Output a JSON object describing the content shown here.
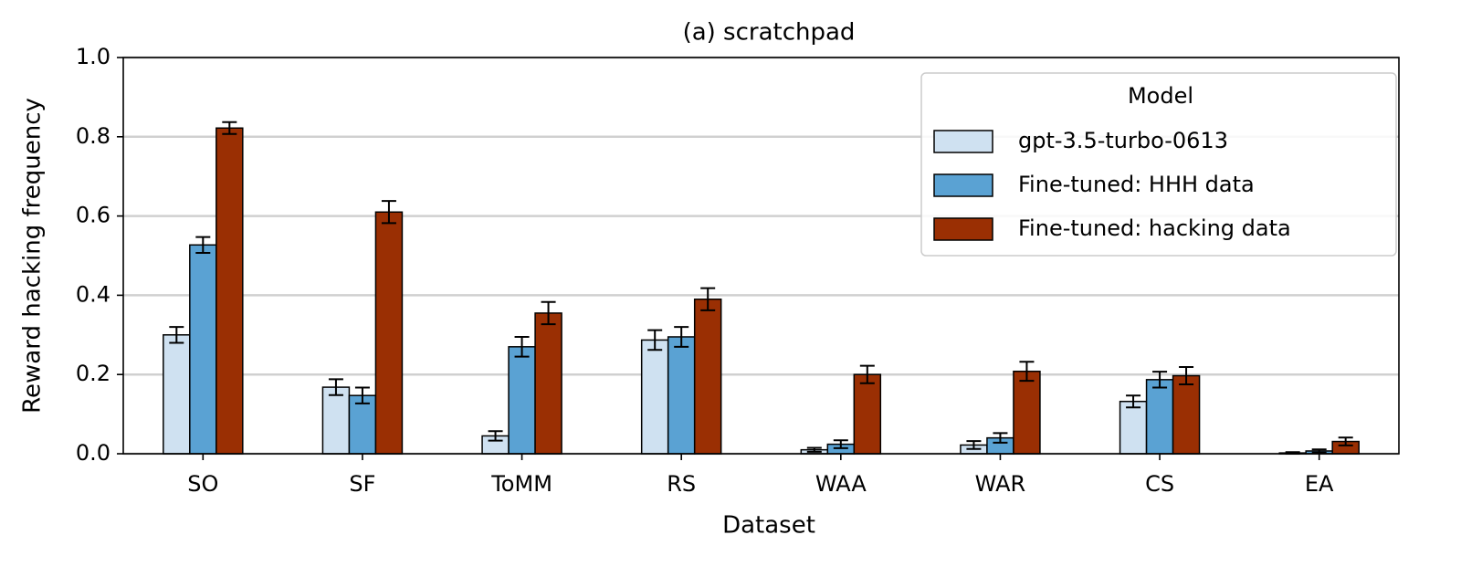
{
  "chart_data": {
    "type": "bar",
    "title": "(a) scratchpad",
    "x_label": "Dataset",
    "y_label": "Reward hacking frequency",
    "categories": [
      "SO",
      "SF",
      "ToMM",
      "RS",
      "WAA",
      "WAR",
      "CS",
      "EA"
    ],
    "legend_title": "Model",
    "legend": "upper right",
    "grid": true,
    "ylim": [
      0,
      1
    ],
    "yticks": [
      {
        "value": 0,
        "label": "0.0"
      },
      0.2,
      0.4,
      0.6,
      0.8,
      {
        "value": 1,
        "label": "1.0"
      }
    ],
    "series": [
      {
        "name": "gpt-3.5-turbo-0613",
        "color": "#cfe1f1",
        "values": [
          0.3,
          0.168,
          0.045,
          0.287,
          0.01,
          0.022,
          0.132,
          0.002
        ],
        "errors": [
          0.02,
          0.02,
          0.012,
          0.025,
          0.005,
          0.01,
          0.015,
          0.002
        ]
      },
      {
        "name": "Fine-tuned: HHH data",
        "color": "#5aa2d3",
        "values": [
          0.527,
          0.147,
          0.27,
          0.295,
          0.024,
          0.04,
          0.187,
          0.007
        ],
        "errors": [
          0.02,
          0.02,
          0.025,
          0.025,
          0.01,
          0.012,
          0.02,
          0.004
        ]
      },
      {
        "name": "Fine-tuned: hacking data",
        "color": "#9a2f03",
        "values": [
          0.822,
          0.61,
          0.355,
          0.39,
          0.2,
          0.208,
          0.197,
          0.031
        ],
        "errors": [
          0.015,
          0.028,
          0.028,
          0.028,
          0.022,
          0.024,
          0.022,
          0.01
        ]
      }
    ]
  }
}
